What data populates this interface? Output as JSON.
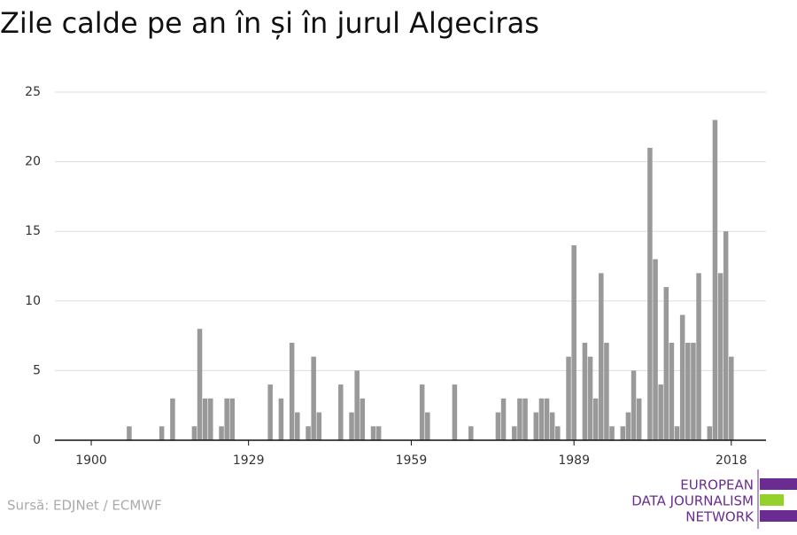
{
  "chart_data": {
    "type": "bar",
    "title": "Zile calde pe an în și în jurul Algeciras",
    "source": "Sursă: EDJNet / ECMWF",
    "logo": [
      "EUROPEAN",
      "DATA JOURNALISM",
      "NETWORK"
    ],
    "color": "#999999",
    "grid": true,
    "x": [
      1907,
      1913,
      1915,
      1919,
      1920,
      1921,
      1922,
      1924,
      1925,
      1926,
      1933,
      1935,
      1937,
      1938,
      1940,
      1941,
      1942,
      1946,
      1948,
      1949,
      1950,
      1952,
      1953,
      1961,
      1962,
      1967,
      1970,
      1975,
      1976,
      1978,
      1979,
      1980,
      1982,
      1983,
      1984,
      1985,
      1986,
      1988,
      1989,
      1991,
      1992,
      1993,
      1994,
      1995,
      1996,
      1998,
      1999,
      2000,
      2001,
      2003,
      2004,
      2005,
      2006,
      2007,
      2008,
      2009,
      2010,
      2011,
      2012,
      2014,
      2015,
      2016,
      2017,
      2018
    ],
    "values": [
      1,
      1,
      3,
      1,
      8,
      3,
      3,
      1,
      3,
      3,
      4,
      3,
      7,
      2,
      1,
      6,
      2,
      4,
      2,
      5,
      3,
      1,
      1,
      4,
      2,
      4,
      1,
      2,
      3,
      1,
      3,
      3,
      2,
      3,
      3,
      2,
      1,
      6,
      14,
      7,
      6,
      3,
      12,
      7,
      1,
      1,
      2,
      5,
      3,
      21,
      13,
      4,
      11,
      7,
      1,
      9,
      7,
      7,
      12,
      1,
      23,
      12,
      15,
      6
    ],
    "xlim": [
      1893.3,
      2024.4
    ],
    "xticks": [
      1900,
      1929,
      1959,
      1989,
      2018
    ],
    "ylim": [
      0,
      25
    ],
    "yticks": [
      0,
      5,
      10,
      15,
      20,
      25
    ]
  }
}
